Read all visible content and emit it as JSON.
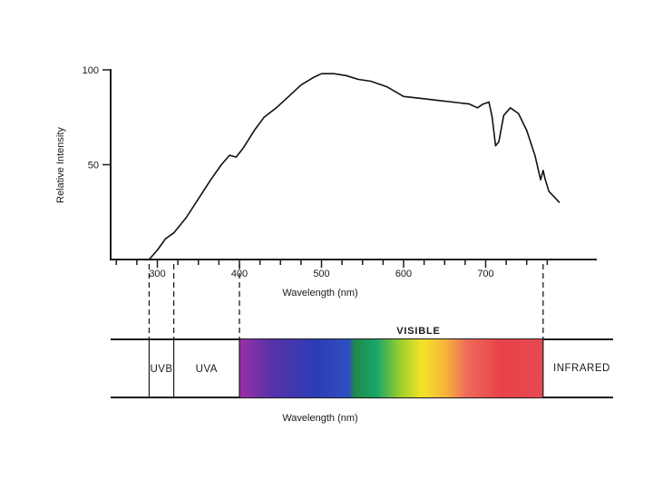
{
  "chart_data": {
    "type": "line",
    "title": "",
    "xlabel": "Wavelength (nm)",
    "ylabel": "Relative Intensity",
    "xlim": [
      240,
      800
    ],
    "ylim": [
      0,
      100
    ],
    "x_ticks": [
      300,
      400,
      500,
      600,
      700
    ],
    "y_ticks": [
      50,
      100
    ],
    "grid": false,
    "series": [
      {
        "points": [
          [
            290,
            0
          ],
          [
            300,
            5
          ],
          [
            310,
            11
          ],
          [
            320,
            14
          ],
          [
            335,
            22
          ],
          [
            350,
            32
          ],
          [
            365,
            42
          ],
          [
            378,
            50
          ],
          [
            388,
            55
          ],
          [
            396,
            54
          ],
          [
            405,
            59
          ],
          [
            418,
            68
          ],
          [
            430,
            75
          ],
          [
            445,
            80
          ],
          [
            460,
            86
          ],
          [
            475,
            92
          ],
          [
            490,
            96
          ],
          [
            500,
            98
          ],
          [
            515,
            98
          ],
          [
            530,
            97
          ],
          [
            545,
            95
          ],
          [
            560,
            94
          ],
          [
            580,
            91
          ],
          [
            600,
            86
          ],
          [
            620,
            85
          ],
          [
            640,
            84
          ],
          [
            660,
            83
          ],
          [
            680,
            82
          ],
          [
            690,
            80
          ],
          [
            697,
            82
          ],
          [
            704,
            83
          ],
          [
            708,
            75
          ],
          [
            712,
            60
          ],
          [
            716,
            62
          ],
          [
            722,
            76
          ],
          [
            730,
            80
          ],
          [
            740,
            77
          ],
          [
            750,
            68
          ],
          [
            760,
            55
          ],
          [
            767,
            42
          ],
          [
            770,
            47
          ],
          [
            772,
            43
          ],
          [
            777,
            36
          ],
          [
            790,
            30
          ]
        ]
      }
    ],
    "regions": [
      {
        "label": "UVB",
        "from": 290,
        "to": 320
      },
      {
        "label": "UVA",
        "from": 320,
        "to": 400
      },
      {
        "label": "VISIBLE",
        "from": 400,
        "to": 770
      },
      {
        "label": "INFRARED",
        "from": 770,
        "to": 800
      }
    ],
    "spectrum_xlabel": "Wavelength (nm)"
  },
  "colors": {
    "ink": "#1a1a1a",
    "spectrum": [
      "#9c2fa6",
      "#5a32a8",
      "#2c3cb5",
      "#2f4fc2",
      "#1f8a4a",
      "#17a56a",
      "#9ccf2c",
      "#f3e329",
      "#f6b33a",
      "#ef6a5a",
      "#e9414a",
      "#e54a50"
    ]
  }
}
